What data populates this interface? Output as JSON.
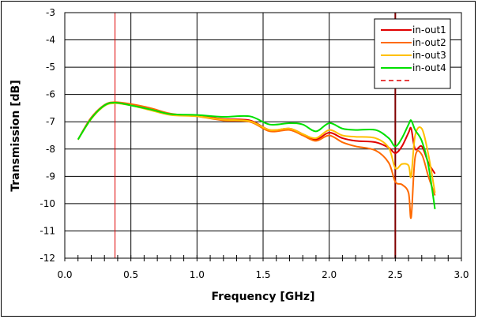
{
  "chart_data": {
    "type": "line",
    "title": "",
    "xlabel": "Frequency [GHz]",
    "ylabel": "Transmission [dB]",
    "xlim": [
      0.0,
      3.0
    ],
    "ylim": [
      -12,
      -3
    ],
    "xticks": [
      "0.0",
      "0.5",
      "1.0",
      "1.5",
      "2.0",
      "2.5",
      "3.0"
    ],
    "yticks": [
      "-3",
      "-4",
      "-5",
      "-6",
      "-7",
      "-8",
      "-9",
      "-10",
      "-11",
      "-12"
    ],
    "grid": true,
    "legend_position": "upper right",
    "x": [
      0.1,
      0.2,
      0.3,
      0.38,
      0.5,
      0.65,
      0.8,
      1.0,
      1.2,
      1.4,
      1.55,
      1.7,
      1.8,
      1.9,
      2.0,
      2.1,
      2.2,
      2.35,
      2.45,
      2.5,
      2.55,
      2.6,
      2.62,
      2.65,
      2.7,
      2.75,
      2.8
    ],
    "series": [
      {
        "name": "in-out1",
        "color": "#e00000",
        "values": [
          -7.65,
          -6.85,
          -6.4,
          -6.3,
          -6.38,
          -6.55,
          -6.72,
          -6.78,
          -6.9,
          -6.95,
          -7.3,
          -7.25,
          -7.45,
          -7.65,
          -7.4,
          -7.6,
          -7.7,
          -7.75,
          -7.95,
          -8.15,
          -7.9,
          -7.4,
          -7.25,
          -8.0,
          -7.9,
          -8.5,
          -8.9
        ]
      },
      {
        "name": "in-out2",
        "color": "#ff6a00",
        "values": [
          -7.65,
          -6.85,
          -6.38,
          -6.28,
          -6.35,
          -6.5,
          -6.7,
          -6.8,
          -6.95,
          -7.0,
          -7.35,
          -7.3,
          -7.5,
          -7.7,
          -7.5,
          -7.75,
          -7.9,
          -8.05,
          -8.5,
          -9.2,
          -9.3,
          -9.6,
          -10.5,
          -8.3,
          -8.2,
          -9.0,
          -9.7
        ]
      },
      {
        "name": "in-out3",
        "color": "#ffc000",
        "values": [
          -7.65,
          -6.9,
          -6.42,
          -6.32,
          -6.4,
          -6.58,
          -6.75,
          -6.8,
          -6.92,
          -6.98,
          -7.3,
          -7.25,
          -7.45,
          -7.6,
          -7.3,
          -7.5,
          -7.55,
          -7.6,
          -7.95,
          -8.7,
          -8.55,
          -8.6,
          -9.0,
          -7.5,
          -7.25,
          -8.2,
          -9.6
        ]
      },
      {
        "name": "in-out4",
        "color": "#00e000",
        "values": [
          -7.65,
          -6.88,
          -6.4,
          -6.3,
          -6.4,
          -6.55,
          -6.72,
          -6.75,
          -6.82,
          -6.8,
          -7.1,
          -7.05,
          -7.1,
          -7.35,
          -7.05,
          -7.25,
          -7.3,
          -7.3,
          -7.6,
          -7.9,
          -7.6,
          -7.1,
          -6.95,
          -7.3,
          -7.7,
          -8.6,
          -10.2
        ]
      }
    ],
    "vertical_markers": [
      {
        "x": 0.38,
        "color": "#e00000",
        "style": "solid"
      },
      {
        "x": 2.5,
        "color": "#800000",
        "style": "solid"
      }
    ],
    "legend_extra": {
      "style": "dashed",
      "color": "#e00000",
      "label": ""
    }
  },
  "legend": {
    "items": [
      {
        "label": "in-out1",
        "color": "#e00000"
      },
      {
        "label": "in-out2",
        "color": "#ff6a00"
      },
      {
        "label": "in-out3",
        "color": "#ffc000"
      },
      {
        "label": "in-out4",
        "color": "#00e000"
      }
    ]
  },
  "axes": {
    "xlabel": "Frequency [GHz]",
    "ylabel": "Transmission [dB]"
  }
}
